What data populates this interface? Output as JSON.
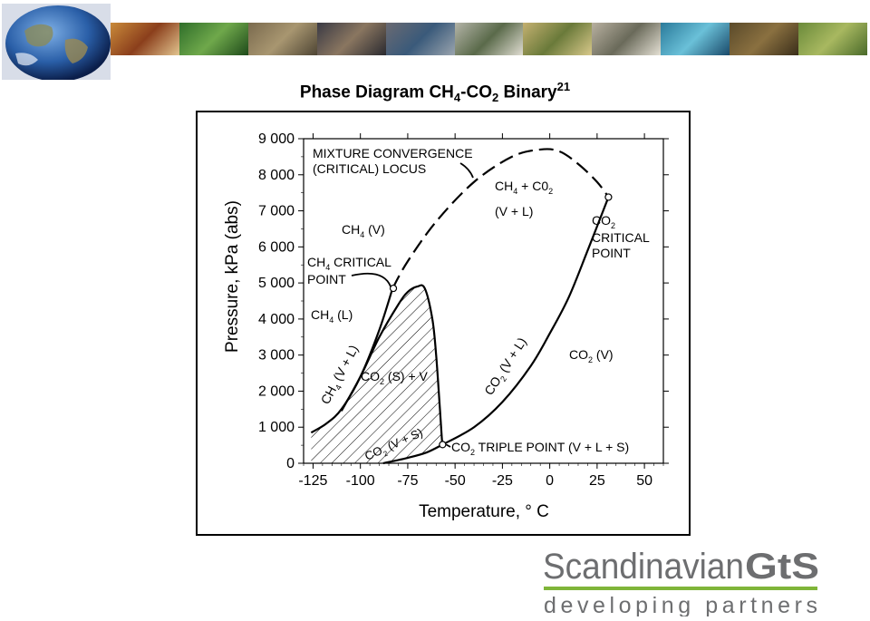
{
  "chart_data": {
    "type": "line",
    "title": "Phase Diagram CH",
    "title_parts": {
      "a": "Phase Diagram CH",
      "s1": "4",
      "b": "-CO",
      "s2": "2",
      "c": " Binary",
      "sup": "21"
    },
    "xlabel": "Temperature, ° C",
    "ylabel": "Pressure, kPa (abs)",
    "xlim": [
      -130,
      60
    ],
    "ylim": [
      0,
      9000
    ],
    "x_ticks": [
      -125,
      -100,
      -75,
      -50,
      -25,
      0,
      25,
      50
    ],
    "x_tick_labels": [
      "-125",
      "-100",
      "-75",
      "-50",
      "-25",
      "0",
      "25",
      "50"
    ],
    "y_ticks": [
      0,
      1000,
      2000,
      3000,
      4000,
      5000,
      6000,
      7000,
      8000,
      9000
    ],
    "y_tick_labels": [
      "0",
      "1 000",
      "2 000",
      "3 000",
      "4 000",
      "5 000",
      "6 000",
      "7 000",
      "8 000",
      "9 000"
    ],
    "series": [
      {
        "name": "",
        "style": "solid",
        "x": [
          -126,
          -118,
          -110,
          -100,
          -90,
          -83
        ],
        "y": [
          850,
          1100,
          1500,
          2400,
          3700,
          4850
        ]
      },
      {
        "name": "",
        "style": "solid",
        "x": [
          -110,
          -100,
          -90,
          -80,
          -75,
          -70,
          -66,
          -62,
          -60,
          -58,
          -57,
          -56.6
        ],
        "y": [
          1450,
          2400,
          3500,
          4400,
          4750,
          4900,
          4850,
          4000,
          3000,
          1500,
          700,
          518
        ]
      },
      {
        "name": "",
        "style": "solid",
        "x": [
          -88,
          -75,
          -65,
          -56.6
        ],
        "y": [
          0,
          150,
          300,
          518
        ]
      },
      {
        "name": "",
        "style": "solid",
        "x": [
          -56.6,
          -40,
          -25,
          -10,
          0,
          10,
          20,
          31
        ],
        "y": [
          518,
          1000,
          1700,
          2700,
          3600,
          4600,
          5900,
          7380
        ]
      },
      {
        "name": "",
        "style": "dashed",
        "x": [
          -83,
          -75,
          -60,
          -40,
          -20,
          -5,
          5,
          15,
          25,
          31
        ],
        "y": [
          4850,
          5600,
          6700,
          7800,
          8500,
          8700,
          8650,
          8300,
          7800,
          7380
        ]
      }
    ],
    "points": [
      {
        "x": -82.6,
        "y": 4850
      },
      {
        "x": 31,
        "y": 7380
      },
      {
        "x": -56.6,
        "y": 518
      }
    ],
    "annotations": {
      "mixture1": "MIXTURE CONVERGENCE",
      "mixture2": "(CRITICAL) LOCUS",
      "ch4co2_a": "CH",
      "ch4co2_s": "4",
      "ch4co2_b": " + C0",
      "ch4co2_s2": "2",
      "vl": "(V + L)",
      "ch4v_a": "CH",
      "ch4v_s": "4",
      "ch4v_b": " (V)",
      "ch4crit_a": "CH",
      "ch4crit_s": "4",
      "ch4crit_b": " CRITICAL",
      "point": "POINT",
      "ch4l_a": "CH",
      "ch4l_s": "4",
      "ch4l_b": " (L)",
      "co2crit_a": "CO",
      "co2crit_s": "2",
      "critical": "CRITICAL",
      "co2point": "POINT",
      "co2v_a": "CO",
      "co2v_s": "2",
      "co2v_b": " (V)",
      "ch4vl_a": "CH",
      "ch4vl_s": "4",
      "ch4vl_b": " (V + L)",
      "co2sv_a": "CO",
      "co2sv_s": "2",
      "co2sv_b": " (S) + V",
      "co2vl_a": "CO",
      "co2vl_s": "2",
      "co2vl_b": " (V + L)",
      "co2vs_a": "CO",
      "co2vs_s": "2",
      "co2vs_b": " (V + S)",
      "triple_a": "CO",
      "triple_s": "2",
      "triple_b": " TRIPLE POINT (V + L + S)"
    },
    "grid": false,
    "legend": "none"
  },
  "logo": {
    "brand": "Scandinavian",
    "brand_bold": "GtS",
    "tagline": "developing partners"
  },
  "colors": {
    "logo_gray": "#6d6e70",
    "logo_green": "#7fb539",
    "ink": "#000000"
  },
  "icons": {
    "earth": "globe-image",
    "banner": "photo-strip"
  }
}
